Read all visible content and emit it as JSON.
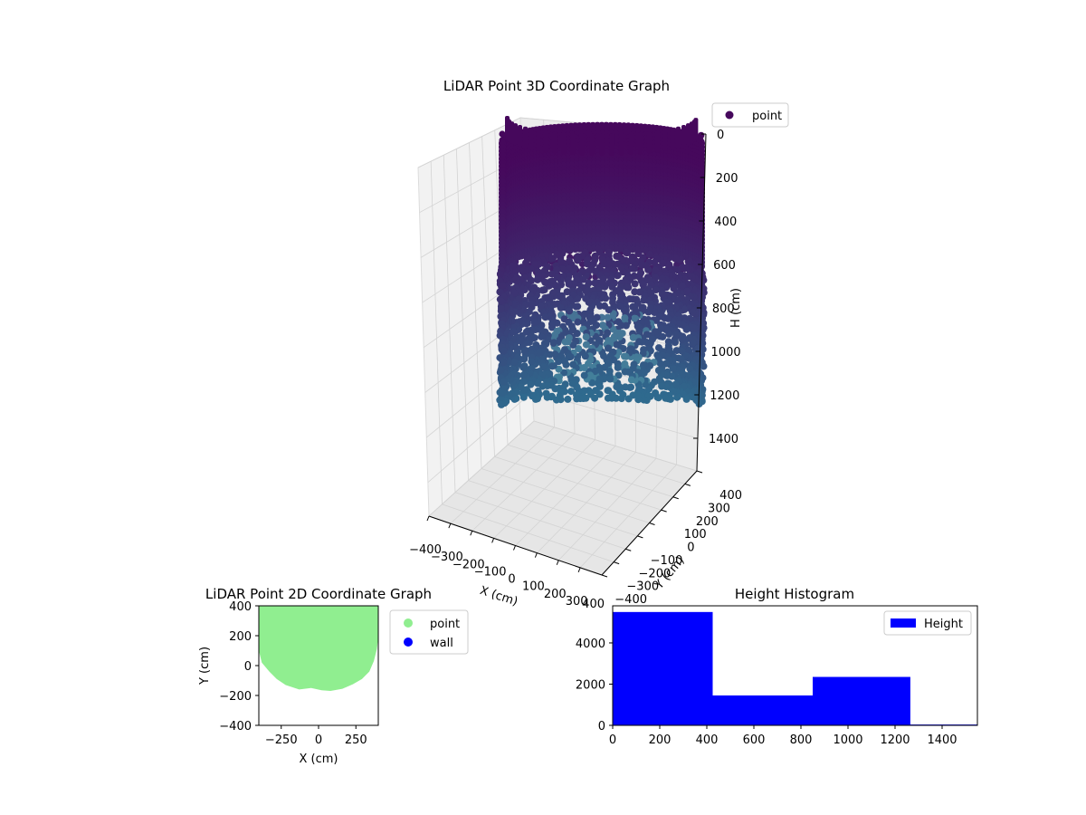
{
  "colors": {
    "point_top": "#46085c",
    "point_bottom": "#2f6a8e",
    "point_highlight": "#4f93a6",
    "plan_point": "#90ee90",
    "wall": "#0000ff",
    "histogram_bar": "#0000ff"
  },
  "chart_data": [
    {
      "type": "scatter",
      "subtype": "3d",
      "title": "LiDAR Point 3D Coordinate Graph",
      "xlabel": "X (cm)",
      "ylabel": "Y (cm)",
      "zlabel": "H (cm)",
      "xlim": [
        -400,
        400
      ],
      "ylim": [
        -400,
        400
      ],
      "zlim": [
        1550,
        0
      ],
      "z_inverted": true,
      "x_ticks": [
        "−400",
        "−300",
        "−200",
        "−100",
        "0",
        "100",
        "200",
        "300"
      ],
      "y_ticks": [
        "−400",
        "−300",
        "−200",
        "−100",
        "0",
        "100",
        "200",
        "300",
        "400"
      ],
      "z_ticks": [
        "0",
        "200",
        "400",
        "600",
        "800",
        "1000",
        "1200",
        "1400"
      ],
      "legend": [
        "point"
      ],
      "legend_position": "top-right",
      "grid": true,
      "shape": "cylindrical shell, radius ~280 cm, H from ~0 (top rim) to ~1200 (rounded bottom)",
      "colormap": "viridis-like (dark purple at top, blue-teal at bottom)"
    },
    {
      "type": "scatter",
      "title": "LiDAR Point 2D Coordinate Graph",
      "xlabel": "X (cm)",
      "ylabel": "Y (cm)",
      "xlim": [
        -400,
        400
      ],
      "ylim": [
        -400,
        400
      ],
      "x_ticks": [
        "−250",
        "0",
        "250"
      ],
      "y_ticks": [
        "400",
        "200",
        "0",
        "−200",
        "−400"
      ],
      "legend": [
        "point",
        "wall"
      ],
      "legend_position": "outside-right",
      "grid": false,
      "point_outline": [
        [
          -400,
          400
        ],
        [
          -400,
          100
        ],
        [
          -380,
          20
        ],
        [
          -330,
          -40
        ],
        [
          -280,
          -90
        ],
        [
          -220,
          -130
        ],
        [
          -130,
          -160
        ],
        [
          -50,
          -150
        ],
        [
          20,
          -165
        ],
        [
          80,
          -170
        ],
        [
          160,
          -155
        ],
        [
          230,
          -125
        ],
        [
          290,
          -90
        ],
        [
          340,
          -40
        ],
        [
          370,
          30
        ],
        [
          390,
          110
        ],
        [
          400,
          180
        ],
        [
          400,
          400
        ]
      ]
    },
    {
      "type": "bar",
      "subtype": "histogram",
      "title": "Height Histogram",
      "xlabel": "",
      "ylabel": "",
      "xlim": [
        0,
        1550
      ],
      "ylim": [
        0,
        5800
      ],
      "x_ticks": [
        "0",
        "200",
        "400",
        "600",
        "800",
        "1000",
        "1200",
        "1400"
      ],
      "y_ticks": [
        "0",
        "2000",
        "4000"
      ],
      "bins": [
        {
          "from": 0,
          "to": 425,
          "count": 5500
        },
        {
          "from": 425,
          "to": 850,
          "count": 1450
        },
        {
          "from": 850,
          "to": 1265,
          "count": 2350
        },
        {
          "from": 1265,
          "to": 1550,
          "count": 40
        }
      ],
      "series": [
        {
          "name": "Height"
        }
      ],
      "legend": [
        "Height"
      ],
      "legend_position": "top-right",
      "y_offset_label": "400"
    }
  ]
}
